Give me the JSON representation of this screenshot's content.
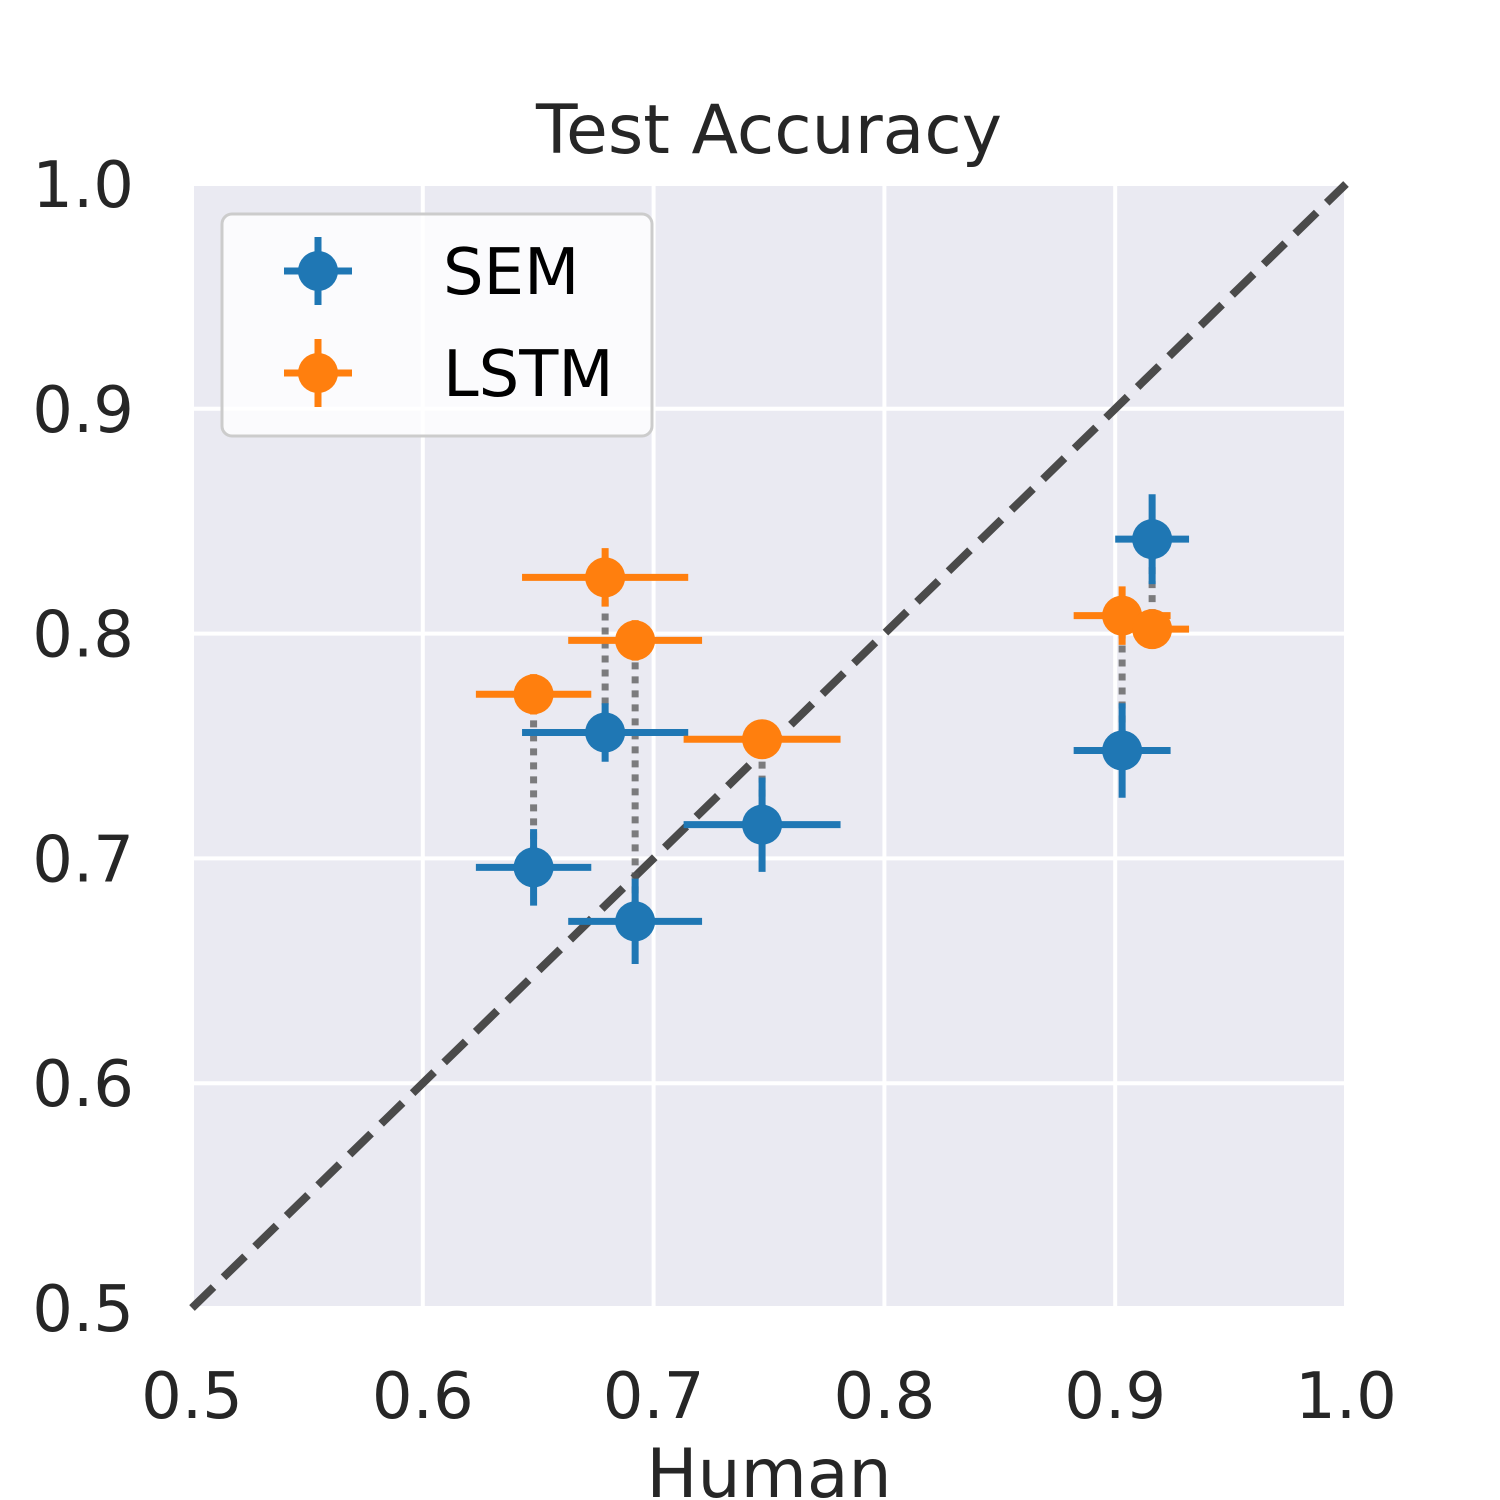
{
  "chart_data": {
    "type": "scatter",
    "title": "Test Accuracy",
    "xlabel": "Human",
    "ylabel": "",
    "xlim": [
      0.5,
      1.0
    ],
    "ylim": [
      0.5,
      1.0
    ],
    "xticks": [
      "0.5",
      "0.6",
      "0.7",
      "0.8",
      "0.9",
      "1.0"
    ],
    "yticks": [
      "0.5",
      "0.6",
      "0.7",
      "0.8",
      "0.9",
      "1.0"
    ],
    "grid": true,
    "legend_position": "top-left",
    "identity_line": true,
    "series": [
      {
        "name": "SEM",
        "color": "#1f77b4",
        "points": [
          {
            "x": 0.648,
            "y": 0.696,
            "xerr": 0.025,
            "yerr": 0.017
          },
          {
            "x": 0.679,
            "y": 0.756,
            "xerr": 0.036,
            "yerr": 0.013
          },
          {
            "x": 0.692,
            "y": 0.672,
            "xerr": 0.029,
            "yerr": 0.019
          },
          {
            "x": 0.747,
            "y": 0.715,
            "xerr": 0.034,
            "yerr": 0.021
          },
          {
            "x": 0.903,
            "y": 0.748,
            "xerr": 0.021,
            "yerr": 0.021
          },
          {
            "x": 0.916,
            "y": 0.842,
            "xerr": 0.016,
            "yerr": 0.02
          }
        ]
      },
      {
        "name": "LSTM",
        "color": "#ff7f0e",
        "points": [
          {
            "x": 0.648,
            "y": 0.773,
            "xerr": 0.025,
            "yerr": 0.009
          },
          {
            "x": 0.679,
            "y": 0.825,
            "xerr": 0.036,
            "yerr": 0.013
          },
          {
            "x": 0.692,
            "y": 0.797,
            "xerr": 0.029,
            "yerr": 0.009
          },
          {
            "x": 0.747,
            "y": 0.753,
            "xerr": 0.034,
            "yerr": 0.005
          },
          {
            "x": 0.903,
            "y": 0.808,
            "xerr": 0.021,
            "yerr": 0.013
          },
          {
            "x": 0.916,
            "y": 0.802,
            "xerr": 0.016,
            "yerr": 0.004
          }
        ]
      }
    ]
  }
}
